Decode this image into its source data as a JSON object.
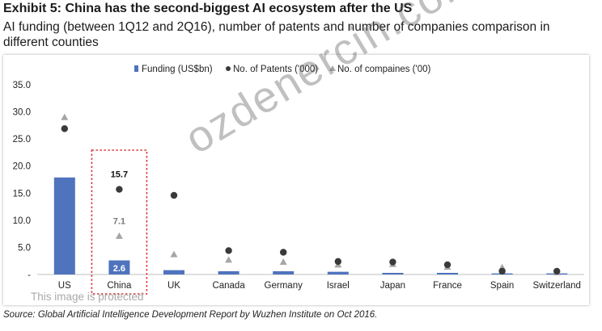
{
  "header": {
    "title": "Exhibit 5: China has the second-biggest AI ecosystem after the US",
    "subtitle": "AI funding (between 1Q12 and 2Q16), number of patents and number of companies comparison in different counties"
  },
  "watermark": "ozdenercin.com",
  "protected_text": "This image is protected",
  "source": "Source: Global Artificial Intelligence Development Report by Wuzhen Institute on Oct 2016.",
  "colors": {
    "bar": "#4f73bd",
    "patent": "#3a3a3a",
    "company": "#a6a6a6",
    "highlight": "#d9383a",
    "label_on_bar": "#ffffff"
  },
  "chart_data": {
    "type": "bar",
    "categories": [
      "US",
      "China",
      "UK",
      "Canada",
      "Germany",
      "Israel",
      "Japan",
      "France",
      "Spain",
      "Switzerland"
    ],
    "series": [
      {
        "name": "Funding (US$bn)",
        "type": "bar",
        "values": [
          17.9,
          2.6,
          0.8,
          0.6,
          0.6,
          0.5,
          0.3,
          0.3,
          0.2,
          0.2
        ]
      },
      {
        "name": "No. of Patents ('000)",
        "type": "scatter",
        "marker": "circle",
        "values": [
          26.9,
          15.7,
          14.6,
          4.4,
          4.1,
          2.4,
          2.3,
          1.8,
          0.6,
          0.6
        ]
      },
      {
        "name": "No. of compaines ('00)",
        "type": "scatter",
        "marker": "triangle",
        "values": [
          29.0,
          7.1,
          3.7,
          2.7,
          2.3,
          1.8,
          1.9,
          1.4,
          1.3,
          0.4
        ]
      }
    ],
    "data_labels": [
      {
        "category": "China",
        "series": "Funding (US$bn)",
        "text": "2.6"
      },
      {
        "category": "China",
        "series": "No. of Patents ('000)",
        "text": "15.7"
      },
      {
        "category": "China",
        "series": "No. of compaines ('00)",
        "text": "7.1"
      }
    ],
    "highlight_category": "China",
    "y_ticks": [
      "-",
      "5.0",
      "10.0",
      "15.0",
      "20.0",
      "25.0",
      "30.0",
      "35.0"
    ],
    "ylim": [
      0,
      35
    ],
    "grid": false,
    "legend_position": "top"
  }
}
